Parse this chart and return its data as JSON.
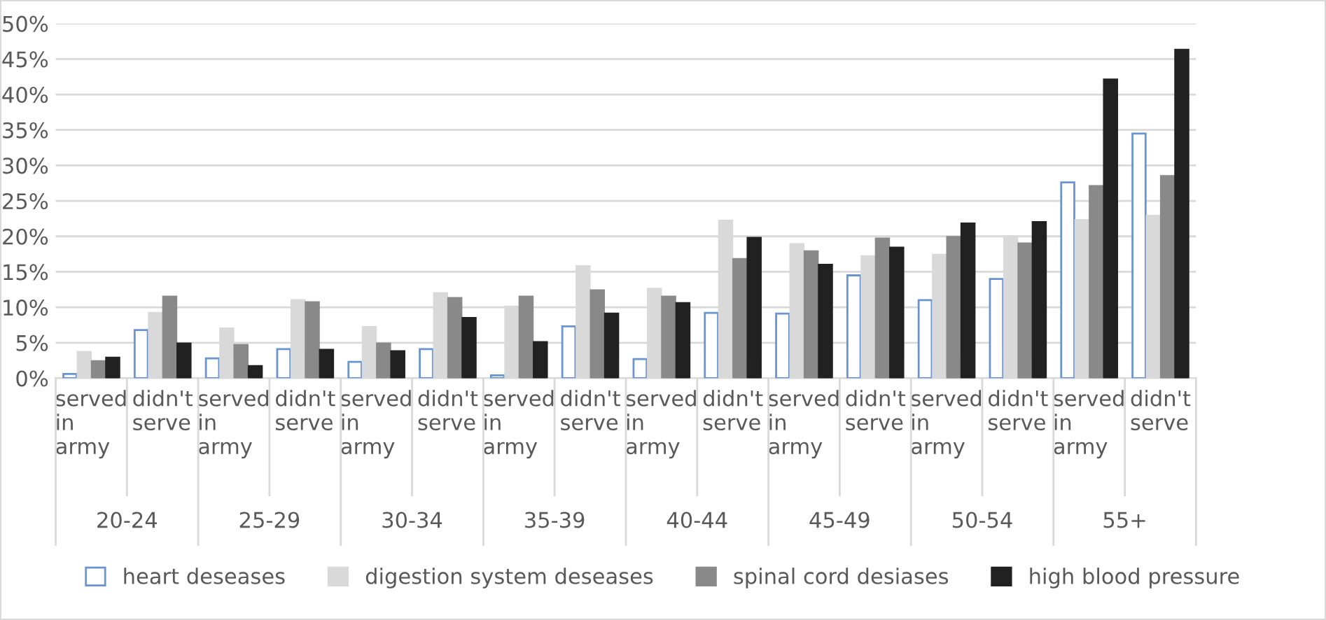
{
  "chart_data": {
    "type": "bar",
    "categories": [
      "served in army",
      "didn't serve",
      "served in army",
      "didn't serve",
      "served in army",
      "didn't serve",
      "served in army",
      "didn't serve",
      "served in army",
      "didn't serve",
      "served in army",
      "didn't serve",
      "served in army",
      "didn't serve",
      "served in army",
      "didn't serve"
    ],
    "annotations": [
      "20-24",
      "25-29",
      "30-34",
      "35-39",
      "40-44",
      "45-49",
      "50-54",
      "55+"
    ],
    "series": [
      {
        "name": "heart deseases",
        "color": "#ffffff",
        "values": [
          0.6,
          6.8,
          2.8,
          4.1,
          2.3,
          4.1,
          0.4,
          7.3,
          2.7,
          9.2,
          9.1,
          14.5,
          11.0,
          14.0,
          27.6,
          34.5
        ]
      },
      {
        "name": "digestion system deseases",
        "color": "#d9d9d9",
        "values": [
          3.7,
          9.2,
          7.0,
          11.0,
          7.2,
          12.0,
          10.1,
          15.8,
          12.6,
          22.2,
          18.9,
          17.2,
          17.4,
          20.0,
          22.3,
          22.9
        ]
      },
      {
        "name": "spinal cord desiases",
        "color": "#898989",
        "values": [
          2.4,
          11.5,
          4.7,
          10.7,
          4.9,
          11.3,
          11.5,
          12.4,
          11.5,
          16.8,
          17.9,
          19.7,
          19.9,
          19.0,
          27.1,
          28.5
        ]
      },
      {
        "name": "high blood pressure",
        "color": "#212121",
        "values": [
          2.9,
          4.9,
          1.7,
          4.0,
          3.8,
          8.5,
          5.1,
          9.1,
          10.6,
          19.8,
          16.0,
          18.4,
          21.8,
          22.0,
          42.1,
          46.3
        ]
      }
    ],
    "ylim": [
      0,
      50
    ],
    "yticks": [
      {
        "value": 0,
        "label": "0%"
      },
      {
        "value": 5,
        "label": "5%"
      },
      {
        "value": 10,
        "label": "10%"
      },
      {
        "value": 15,
        "label": "15%"
      },
      {
        "value": 20,
        "label": "20%"
      },
      {
        "value": 25,
        "label": "25%"
      },
      {
        "value": 30,
        "label": "30%"
      },
      {
        "value": 35,
        "label": "35%"
      },
      {
        "value": 40,
        "label": "40%"
      },
      {
        "value": 45,
        "label": "45%"
      },
      {
        "value": 50,
        "label": "50%"
      }
    ],
    "grid": "y",
    "legend": "bottom"
  }
}
